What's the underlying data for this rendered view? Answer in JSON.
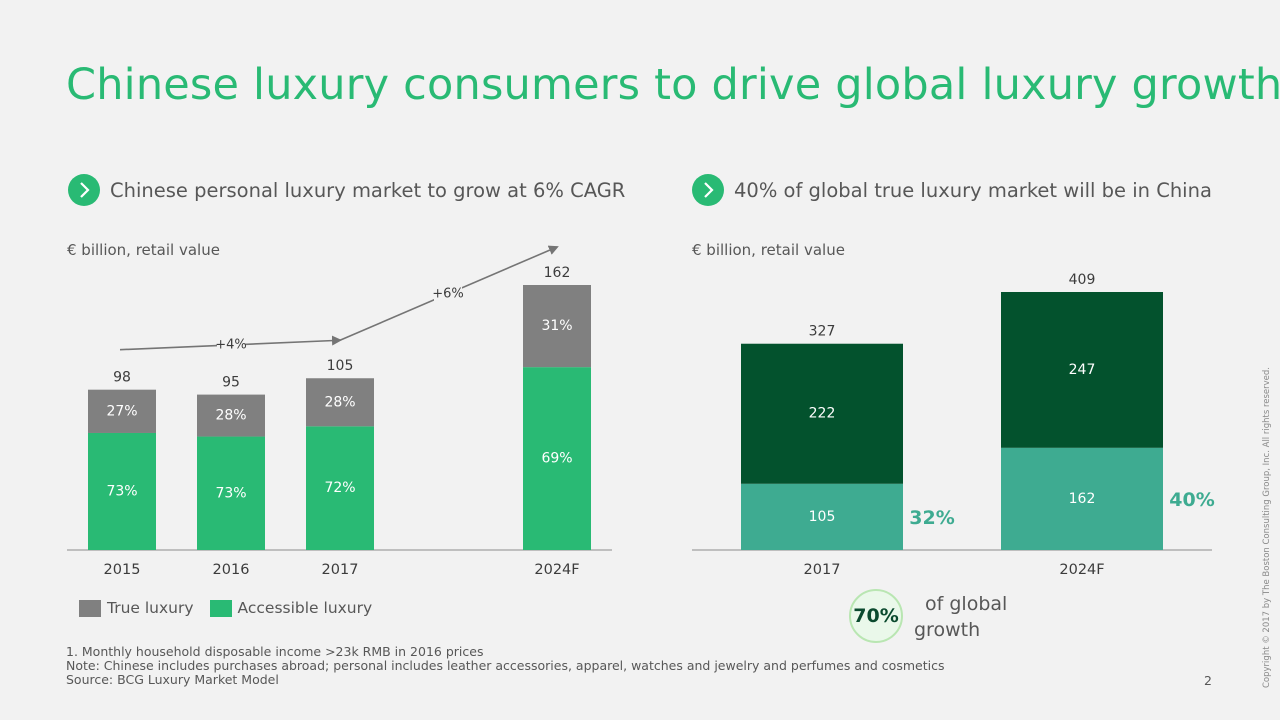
{
  "title": "Chinese luxury consumers to drive global luxury growth",
  "left": {
    "subtitle": "Chinese personal luxury market to grow at 6% CAGR",
    "unit_label": "€ billion, retail value"
  },
  "right": {
    "subtitle": "40% of global true luxury market will be in China",
    "unit_label": "€ billion, retail value"
  },
  "legend": {
    "true_luxury": "True luxury",
    "accessible_luxury": "Accessible luxury"
  },
  "badge": {
    "value": "70%",
    "text_line1": "of global",
    "text_line2": "growth"
  },
  "notes": {
    "line1": "1. Monthly household disposable income >23k RMB in 2016 prices",
    "line2": "Note: Chinese includes purchases abroad; personal includes leather accessories, apparel, watches and jewelry and perfumes and cosmetics",
    "line3": "Source: BCG Luxury Market Model"
  },
  "page_number": "2",
  "copyright": "Copyright © 2017 by The Boston Consulting Group, Inc. All rights reserved.",
  "colors": {
    "title": "#29ba74",
    "accessible": "#29ba74",
    "true": "#808080",
    "china_true": "#3eab91",
    "rest": "#03522d",
    "text": "#575757"
  },
  "chart_data": [
    {
      "type": "bar",
      "stacked": true,
      "unit": "€ billion, retail value",
      "categories": [
        "2015",
        "2016",
        "2017",
        "2024F"
      ],
      "totals": [
        98,
        95,
        105,
        162
      ],
      "series": [
        {
          "name": "Accessible luxury",
          "values": [
            "73%",
            "73%",
            "72%",
            "69%"
          ]
        },
        {
          "name": "True luxury",
          "values": [
            "27%",
            "28%",
            "28%",
            "31%"
          ]
        }
      ],
      "annotations": [
        {
          "from": "2015",
          "to": "2017",
          "label": "+4%"
        },
        {
          "from": "2017",
          "to": "2024F",
          "label": "+6%"
        }
      ]
    },
    {
      "type": "bar",
      "stacked": true,
      "unit": "€ billion, retail value",
      "categories": [
        "2017",
        "2024F"
      ],
      "totals": [
        327,
        409
      ],
      "series": [
        {
          "values": [
            105,
            162
          ]
        },
        {
          "values": [
            222,
            247
          ]
        }
      ],
      "share_labels": [
        "32%",
        "40%"
      ]
    }
  ]
}
